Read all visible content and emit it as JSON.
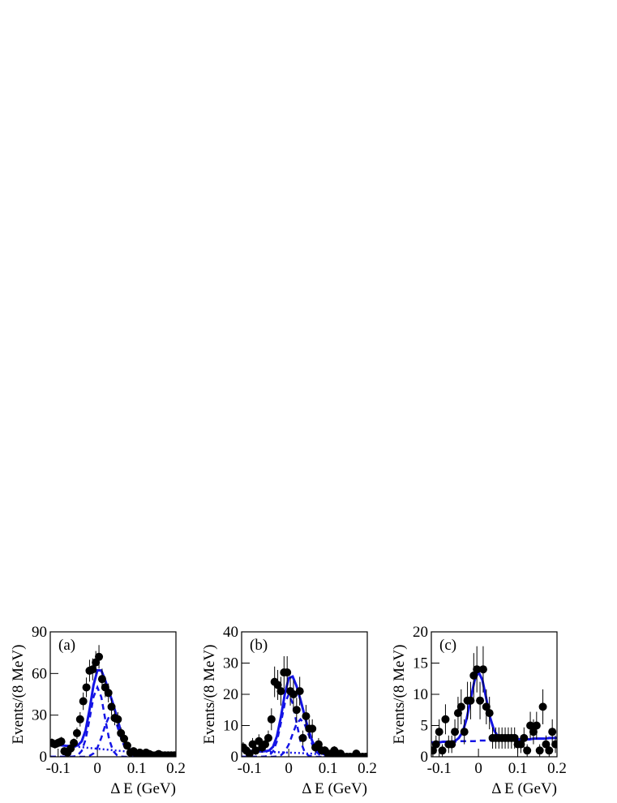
{
  "chart_data": [
    {
      "type": "scatter",
      "panel_label": "(a)",
      "y_label": "Events/(8 MeV)",
      "x_label": "Δ E (GeV)",
      "xlim": [
        -0.12,
        0.2
      ],
      "xticks": [
        -0.1,
        0,
        0.1,
        0.2
      ],
      "ylim": [
        0,
        90
      ],
      "yticks": [
        0,
        30,
        60,
        90
      ],
      "point_color": "#000000",
      "x": [
        -0.116,
        -0.108,
        -0.1,
        -0.092,
        -0.084,
        -0.076,
        -0.068,
        -0.06,
        -0.052,
        -0.044,
        -0.036,
        -0.028,
        -0.02,
        -0.012,
        -0.004,
        0.004,
        0.012,
        0.02,
        0.028,
        0.036,
        0.044,
        0.052,
        0.06,
        0.068,
        0.076,
        0.084,
        0.092,
        0.1,
        0.108,
        0.116,
        0.124,
        0.132,
        0.14,
        0.148,
        0.156,
        0.164,
        0.172,
        0.18,
        0.188,
        0.196
      ],
      "values": [
        10,
        9,
        10,
        11,
        4,
        3,
        6,
        10,
        17,
        27,
        40,
        50,
        62,
        63,
        68,
        72,
        56,
        50,
        46,
        36,
        28,
        27,
        17,
        13,
        8,
        3,
        4,
        2,
        3,
        2,
        3,
        2,
        1,
        1,
        2,
        1,
        1,
        1,
        1,
        1
      ],
      "errors": [
        3.2,
        3,
        3.2,
        3.3,
        2,
        1.7,
        2.4,
        3.2,
        4.1,
        5.2,
        6.3,
        7.1,
        7.9,
        7.9,
        8.2,
        8.5,
        7.5,
        7.1,
        6.8,
        6,
        5.3,
        5.2,
        4.1,
        3.6,
        2.8,
        1.7,
        2,
        1.4,
        1.7,
        1.4,
        1.7,
        1.4,
        1,
        1,
        1.4,
        1,
        1,
        1,
        1,
        1
      ],
      "curve_x": [
        -0.12,
        -0.11,
        -0.1,
        -0.09,
        -0.08,
        -0.07,
        -0.06,
        -0.05,
        -0.04,
        -0.03,
        -0.02,
        -0.01,
        0,
        0.01,
        0.02,
        0.03,
        0.04,
        0.05,
        0.06,
        0.07,
        0.08,
        0.09,
        0.1,
        0.11,
        0.12,
        0.13,
        0.14,
        0.15,
        0.16,
        0.17,
        0.18,
        0.19,
        0.2
      ],
      "curves": [
        {
          "color": "#1414e6",
          "style": "dotted",
          "values": [
            9,
            8.7,
            8.5,
            8.2,
            7.9,
            7.7,
            7.4,
            7.1,
            6.9,
            6.6,
            6.3,
            6.1,
            5.8,
            5.5,
            5.3,
            5,
            4.7,
            4.4,
            4.2,
            3.9,
            3.6,
            3.4,
            3.1,
            2.8,
            2.6,
            2.3,
            2,
            1.8,
            1.5,
            1.2,
            1,
            0.7,
            0.5
          ]
        },
        {
          "color": "#1414e6",
          "style": "dashed",
          "values": [
            0,
            0,
            0,
            0,
            0,
            0,
            0.2,
            1.1,
            4.2,
            12.5,
            27,
            43,
            50,
            43,
            27,
            12.5,
            4.2,
            1.1,
            0.2,
            0,
            0,
            0,
            0,
            0,
            0,
            0,
            0,
            0,
            0,
            0,
            0,
            0,
            0
          ]
        },
        {
          "color": "#1414e6",
          "style": "dashed",
          "values": [
            0,
            0,
            0,
            0,
            0,
            0,
            0,
            0,
            0,
            0,
            0.7,
            2.4,
            6.5,
            13.7,
            22.7,
            29.1,
            29.1,
            22.7,
            13.7,
            6.5,
            2.4,
            0.7,
            0.2,
            0,
            0,
            0,
            0,
            0,
            0,
            0,
            0,
            0,
            0
          ]
        },
        {
          "color": "#1414e6",
          "style": "solid",
          "values": [
            9,
            8.7,
            8.5,
            8.2,
            7.9,
            7.7,
            7.6,
            8.2,
            11.1,
            19.1,
            34,
            51.5,
            62.3,
            62.2,
            55,
            46.6,
            38,
            28.2,
            18.1,
            10.4,
            6,
            4.1,
            3.3,
            2.8,
            2.6,
            2.3,
            2,
            1.8,
            1.5,
            1.2,
            1,
            0.7,
            0.5
          ]
        }
      ]
    },
    {
      "type": "scatter",
      "panel_label": "(b)",
      "y_label": "Events/(8 MeV)",
      "x_label": "Δ E (GeV)",
      "xlim": [
        -0.12,
        0.2
      ],
      "xticks": [
        -0.1,
        0,
        0.1,
        0.2
      ],
      "ylim": [
        0,
        40
      ],
      "yticks": [
        0,
        10,
        20,
        30,
        40
      ],
      "point_color": "#000000",
      "x": [
        -0.116,
        -0.108,
        -0.1,
        -0.092,
        -0.084,
        -0.076,
        -0.068,
        -0.06,
        -0.052,
        -0.044,
        -0.036,
        -0.028,
        -0.02,
        -0.012,
        -0.004,
        0.004,
        0.012,
        0.02,
        0.028,
        0.036,
        0.044,
        0.052,
        0.06,
        0.068,
        0.076,
        0.084,
        0.092,
        0.1,
        0.108,
        0.116,
        0.124,
        0.132,
        0.14,
        0.148,
        0.156,
        0.164,
        0.172,
        0.18,
        0.188,
        0.196
      ],
      "values": [
        3,
        2,
        1,
        4,
        2,
        5,
        3,
        4,
        6,
        12,
        24,
        23,
        21,
        27,
        27,
        21,
        20,
        15,
        21,
        6,
        13,
        9,
        9,
        3,
        4,
        2,
        2,
        1,
        1,
        2,
        1,
        1,
        0,
        0,
        0,
        0,
        1,
        0,
        0,
        0
      ],
      "errors": [
        1.7,
        1.4,
        1,
        2,
        1.4,
        2.2,
        1.7,
        2,
        2.4,
        3.5,
        4.9,
        4.8,
        4.6,
        5.2,
        5.2,
        4.6,
        4.5,
        3.9,
        4.6,
        2.4,
        3.6,
        3,
        3,
        1.7,
        2,
        1.4,
        1.4,
        1,
        1,
        1.4,
        1,
        1,
        0,
        0,
        0,
        0,
        1,
        0,
        0,
        0
      ],
      "curve_x": [
        -0.12,
        -0.11,
        -0.1,
        -0.09,
        -0.08,
        -0.07,
        -0.06,
        -0.05,
        -0.04,
        -0.03,
        -0.02,
        -0.01,
        0,
        0.01,
        0.02,
        0.03,
        0.04,
        0.05,
        0.06,
        0.07,
        0.08,
        0.09,
        0.1,
        0.11,
        0.12,
        0.13,
        0.14,
        0.15,
        0.16,
        0.17,
        0.18,
        0.19,
        0.2
      ],
      "curves": [
        {
          "color": "#1414e6",
          "style": "dotted",
          "values": [
            2,
            1.9,
            1.9,
            1.8,
            1.8,
            1.7,
            1.7,
            1.6,
            1.5,
            1.5,
            1.4,
            1.4,
            1.3,
            1.3,
            1.2,
            1.2,
            1.1,
            1,
            1,
            0.9,
            0.9,
            0.8,
            0.8,
            0.7,
            0.7,
            0.6,
            0.5,
            0.5,
            0.4,
            0.4,
            0.3,
            0.3,
            0.2
          ]
        },
        {
          "color": "#1414e6",
          "style": "dashed",
          "values": [
            0,
            0,
            0,
            0,
            0,
            0,
            0.1,
            0.4,
            1.7,
            5,
            10.8,
            17.1,
            20,
            17.1,
            10.8,
            5,
            1.7,
            0.4,
            0.1,
            0,
            0,
            0,
            0,
            0,
            0,
            0,
            0,
            0,
            0,
            0,
            0,
            0,
            0
          ]
        },
        {
          "color": "#1414e6",
          "style": "dashed",
          "values": [
            0,
            0,
            0,
            0,
            0,
            0,
            0,
            0,
            0,
            0.1,
            0.5,
            1.6,
            3.9,
            7.3,
            10.6,
            12,
            10.6,
            7.3,
            3.9,
            1.6,
            0.5,
            0.1,
            0,
            0,
            0,
            0,
            0,
            0,
            0,
            0,
            0,
            0,
            0
          ]
        },
        {
          "color": "#1414e6",
          "style": "solid",
          "values": [
            2,
            1.9,
            1.9,
            1.8,
            1.8,
            1.7,
            1.8,
            2,
            3.2,
            6.6,
            12.7,
            20.1,
            25.2,
            25.7,
            22.6,
            18.2,
            13.4,
            8.7,
            5,
            2.5,
            1.4,
            0.9,
            0.8,
            0.7,
            0.7,
            0.6,
            0.5,
            0.5,
            0.4,
            0.4,
            0.3,
            0.3,
            0.2
          ]
        }
      ]
    },
    {
      "type": "scatter",
      "panel_label": "(c)",
      "y_label": "Events/(8 MeV)",
      "x_label": "Δ E (GeV)",
      "xlim": [
        -0.12,
        0.2
      ],
      "xticks": [
        -0.1,
        0,
        0.1,
        0.2
      ],
      "ylim": [
        0,
        20
      ],
      "yticks": [
        0,
        5,
        10,
        15,
        20
      ],
      "point_color": "#000000",
      "x": [
        -0.116,
        -0.108,
        -0.1,
        -0.092,
        -0.084,
        -0.076,
        -0.068,
        -0.06,
        -0.052,
        -0.044,
        -0.036,
        -0.028,
        -0.02,
        -0.012,
        -0.004,
        0.004,
        0.012,
        0.02,
        0.028,
        0.036,
        0.044,
        0.052,
        0.06,
        0.068,
        0.076,
        0.084,
        0.092,
        0.1,
        0.108,
        0.116,
        0.124,
        0.132,
        0.14,
        0.148,
        0.156,
        0.164,
        0.172,
        0.18,
        0.188,
        0.196
      ],
      "values": [
        1,
        2,
        4,
        1,
        6,
        2,
        2,
        4,
        7,
        8,
        4,
        9,
        9,
        13,
        14,
        9,
        14,
        8,
        7,
        3,
        3,
        3,
        3,
        3,
        3,
        3,
        3,
        2,
        2,
        3,
        1,
        5,
        4,
        5,
        1,
        8,
        2,
        1,
        4,
        2
      ],
      "errors": [
        1,
        1.4,
        2,
        1,
        2.4,
        1.4,
        1.4,
        2,
        2.6,
        2.8,
        2,
        3,
        3,
        3.6,
        3.7,
        3,
        3.7,
        2.8,
        2.6,
        1.7,
        1.7,
        1.7,
        1.7,
        1.7,
        1.7,
        1.7,
        1.7,
        1.4,
        1.4,
        1.7,
        1,
        2.2,
        2,
        2.2,
        1,
        2.8,
        1.4,
        1,
        2,
        1.4
      ],
      "curve_x": [
        -0.12,
        -0.11,
        -0.1,
        -0.09,
        -0.08,
        -0.07,
        -0.06,
        -0.05,
        -0.04,
        -0.03,
        -0.02,
        -0.01,
        0,
        0.01,
        0.02,
        0.03,
        0.04,
        0.05,
        0.06,
        0.07,
        0.08,
        0.09,
        0.1,
        0.11,
        0.12,
        0.13,
        0.14,
        0.15,
        0.16,
        0.17,
        0.18,
        0.19,
        0.2
      ],
      "curves": [
        {
          "color": "#1414e6",
          "style": "dashed",
          "values": [
            2.3,
            2.3,
            2.3,
            2.4,
            2.4,
            2.4,
            2.4,
            2.5,
            2.5,
            2.5,
            2.5,
            2.5,
            2.6,
            2.6,
            2.6,
            2.6,
            2.7,
            2.7,
            2.7,
            2.7,
            2.7,
            2.8,
            2.8,
            2.8,
            2.8,
            2.8,
            2.9,
            2.9,
            2.9,
            2.9,
            3,
            3,
            3
          ]
        },
        {
          "color": "#1414e6",
          "style": "solid",
          "values": [
            2.3,
            2.3,
            2.3,
            2.4,
            2.4,
            2.4,
            2.5,
            3,
            4,
            6.1,
            9.2,
            12.2,
            13.6,
            12.3,
            9.3,
            6.2,
            4.2,
            3.2,
            2.8,
            2.7,
            2.7,
            2.8,
            2.8,
            2.8,
            2.8,
            2.8,
            2.9,
            2.9,
            2.9,
            2.9,
            3,
            3,
            3
          ]
        }
      ]
    }
  ]
}
